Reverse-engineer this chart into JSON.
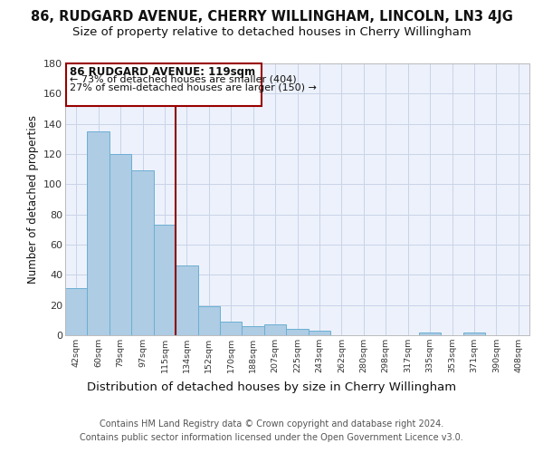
{
  "title_line1": "86, RUDGARD AVENUE, CHERRY WILLINGHAM, LINCOLN, LN3 4JG",
  "title_line2": "Size of property relative to detached houses in Cherry Willingham",
  "xlabel": "Distribution of detached houses by size in Cherry Willingham",
  "ylabel": "Number of detached properties",
  "categories": [
    "42sqm",
    "60sqm",
    "79sqm",
    "97sqm",
    "115sqm",
    "134sqm",
    "152sqm",
    "170sqm",
    "188sqm",
    "207sqm",
    "225sqm",
    "243sqm",
    "262sqm",
    "280sqm",
    "298sqm",
    "317sqm",
    "335sqm",
    "353sqm",
    "371sqm",
    "390sqm",
    "408sqm"
  ],
  "values": [
    31,
    135,
    120,
    109,
    73,
    46,
    19,
    9,
    6,
    7,
    4,
    3,
    0,
    0,
    0,
    0,
    2,
    0,
    2,
    0,
    0
  ],
  "bar_color": "#aecce4",
  "bar_edge_color": "#6aafd4",
  "vline_x": 4.5,
  "vline_color": "#8b0000",
  "annotation_title": "86 RUDGARD AVENUE: 119sqm",
  "annotation_line1": "← 73% of detached houses are smaller (404)",
  "annotation_line2": "27% of semi-detached houses are larger (150) →",
  "annotation_box_edge": "#990000",
  "ylim": [
    0,
    180
  ],
  "yticks": [
    0,
    20,
    40,
    60,
    80,
    100,
    120,
    140,
    160,
    180
  ],
  "footer_line1": "Contains HM Land Registry data © Crown copyright and database right 2024.",
  "footer_line2": "Contains public sector information licensed under the Open Government Licence v3.0.",
  "bg_color": "#edf1fb",
  "grid_color": "#c8d4e8",
  "title1_fontsize": 10.5,
  "title2_fontsize": 9.5,
  "xlabel_fontsize": 9.5,
  "ylabel_fontsize": 8.5,
  "footer_fontsize": 7.0
}
